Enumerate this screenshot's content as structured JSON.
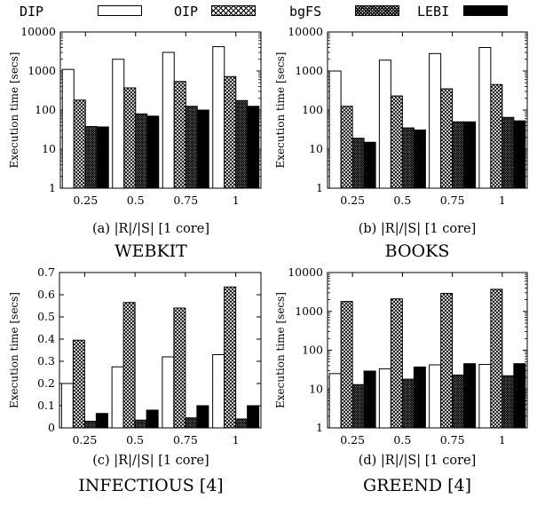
{
  "legend": [
    {
      "name": "DIP",
      "style": "white"
    },
    {
      "name": "OIP",
      "style": "crosshatch"
    },
    {
      "name": "bgFS",
      "style": "dense"
    },
    {
      "name": "LEBI",
      "style": "black"
    }
  ],
  "chart_data": [
    {
      "type": "bar",
      "scale": "log",
      "ylim": [
        1,
        10000
      ],
      "yticks": [
        "1",
        "10",
        "100",
        "1000",
        "10000"
      ],
      "ylabel": "Execution time [secs]",
      "categories": [
        "0.25",
        "0.5",
        "0.75",
        "1"
      ],
      "series": [
        {
          "name": "DIP",
          "values": [
            1100,
            2000,
            3000,
            4200
          ]
        },
        {
          "name": "OIP",
          "values": [
            180,
            370,
            540,
            720
          ]
        },
        {
          "name": "bgFS",
          "values": [
            38,
            80,
            125,
            175
          ]
        },
        {
          "name": "LEBI",
          "values": [
            37,
            70,
            100,
            125
          ]
        }
      ],
      "caption": "(a) |R|/|S| [1 core]",
      "dataset": "WEBKIT"
    },
    {
      "type": "bar",
      "scale": "log",
      "ylim": [
        1,
        10000
      ],
      "yticks": [
        "1",
        "10",
        "100",
        "1000",
        "10000"
      ],
      "ylabel": "Execution time [secs]",
      "categories": [
        "0.25",
        "0.5",
        "0.75",
        "1"
      ],
      "series": [
        {
          "name": "DIP",
          "values": [
            1000,
            1900,
            2800,
            4000
          ]
        },
        {
          "name": "OIP",
          "values": [
            125,
            230,
            350,
            450
          ]
        },
        {
          "name": "bgFS",
          "values": [
            19,
            35,
            50,
            65
          ]
        },
        {
          "name": "LEBI",
          "values": [
            15,
            31,
            50,
            53
          ]
        }
      ],
      "caption": "(b) |R|/|S| [1 core]",
      "dataset": "BOOKS"
    },
    {
      "type": "bar",
      "scale": "linear",
      "ylim": [
        0,
        0.7
      ],
      "yticks": [
        "0",
        "0.1",
        "0.2",
        "0.3",
        "0.4",
        "0.5",
        "0.6",
        "0.7"
      ],
      "ylabel": "Execution time [secs]",
      "categories": [
        "0.25",
        "0.5",
        "0.75",
        "1"
      ],
      "series": [
        {
          "name": "DIP",
          "values": [
            0.2,
            0.275,
            0.32,
            0.33
          ]
        },
        {
          "name": "OIP",
          "values": [
            0.395,
            0.565,
            0.54,
            0.635
          ]
        },
        {
          "name": "bgFS",
          "values": [
            0.03,
            0.035,
            0.045,
            0.04
          ]
        },
        {
          "name": "LEBI",
          "values": [
            0.065,
            0.08,
            0.1,
            0.1
          ]
        }
      ],
      "caption": "(c) |R|/|S| [1 core]",
      "dataset": "INFECTIOUS [4]"
    },
    {
      "type": "bar",
      "scale": "log",
      "ylim": [
        1,
        10000
      ],
      "yticks": [
        "1",
        "10",
        "100",
        "1000",
        "10000"
      ],
      "ylabel": "Execution time [secs]",
      "categories": [
        "0.25",
        "0.5",
        "0.75",
        "1"
      ],
      "series": [
        {
          "name": "DIP",
          "values": [
            25,
            33,
            42,
            43
          ]
        },
        {
          "name": "OIP",
          "values": [
            1800,
            2100,
            2900,
            3700
          ]
        },
        {
          "name": "bgFS",
          "values": [
            13,
            18,
            23,
            22
          ]
        },
        {
          "name": "LEBI",
          "values": [
            29,
            37,
            45,
            45
          ]
        }
      ],
      "caption": "(d) |R|/|S| [1 core]",
      "dataset": "GREEND [4]"
    }
  ]
}
